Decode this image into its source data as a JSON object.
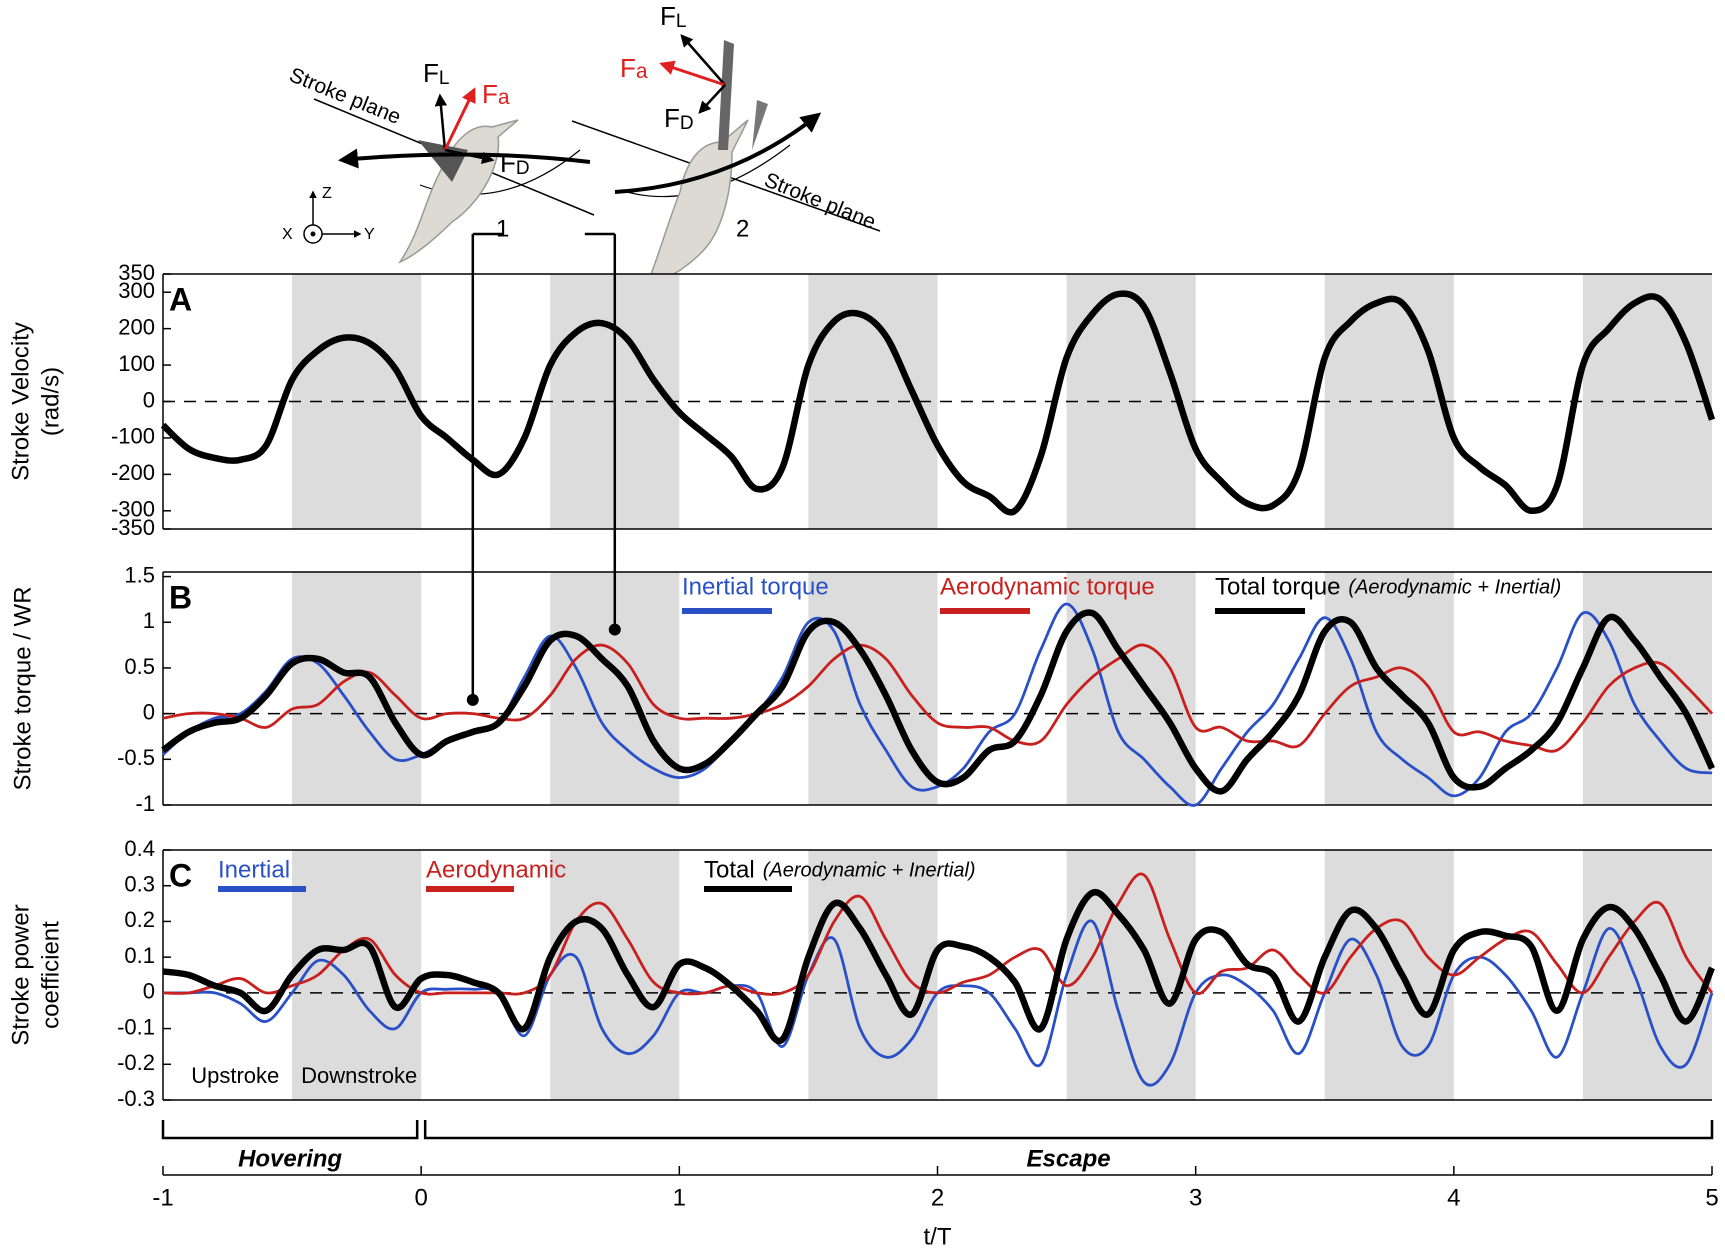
{
  "diagram": {
    "stroke_plane": [
      "Stroke plane",
      "Stroke plane"
    ],
    "bird_1": {
      "label": "1",
      "forces": [
        {
          "symbol": "F",
          "sub": "L"
        },
        {
          "symbol": "F",
          "sub": "a"
        },
        {
          "symbol": "F",
          "sub": "D"
        }
      ]
    },
    "bird_2": {
      "label": "2",
      "forces": [
        {
          "symbol": "F",
          "sub": "L"
        },
        {
          "symbol": "F",
          "sub": "a"
        },
        {
          "symbol": "F",
          "sub": "D"
        }
      ]
    },
    "axes": [
      "Z",
      "Y",
      "X"
    ]
  },
  "downstroke_spans": [
    [
      -0.5,
      0
    ],
    [
      0.5,
      1
    ],
    [
      1.5,
      2
    ],
    [
      2.5,
      3
    ],
    [
      3.5,
      4
    ],
    [
      4.5,
      5
    ]
  ],
  "chart_data": [
    {
      "type": "line",
      "label": "A",
      "ylabel": [
        "Stroke Velocity",
        "(rad/s)"
      ],
      "xlim": [
        -1,
        5
      ],
      "ylim": [
        -350,
        350
      ],
      "yticks": [
        -350,
        -300,
        -200,
        -100,
        0,
        100,
        200,
        300,
        350
      ],
      "x": [
        -1,
        -0.9,
        -0.8,
        -0.7,
        -0.6,
        -0.5,
        -0.4,
        -0.3,
        -0.2,
        -0.1,
        0,
        0.1,
        0.2,
        0.3,
        0.4,
        0.5,
        0.6,
        0.7,
        0.8,
        0.9,
        1,
        1.1,
        1.2,
        1.3,
        1.4,
        1.5,
        1.6,
        1.7,
        1.8,
        1.9,
        2,
        2.1,
        2.2,
        2.3,
        2.4,
        2.5,
        2.6,
        2.7,
        2.8,
        2.9,
        3,
        3.1,
        3.2,
        3.3,
        3.4,
        3.5,
        3.6,
        3.7,
        3.8,
        3.9,
        4,
        4.1,
        4.2,
        4.3,
        4.4,
        4.5,
        4.6,
        4.7,
        4.8,
        4.9,
        5
      ],
      "series": [
        {
          "color": "#000000",
          "values": [
            -65,
            -130,
            -155,
            -160,
            -120,
            60,
            140,
            175,
            160,
            90,
            -40,
            -100,
            -160,
            -200,
            -100,
            100,
            190,
            215,
            170,
            60,
            -30,
            -90,
            -150,
            -240,
            -180,
            100,
            220,
            240,
            180,
            30,
            -120,
            -220,
            -260,
            -300,
            -150,
            120,
            240,
            295,
            260,
            80,
            -130,
            -220,
            -280,
            -285,
            -190,
            120,
            220,
            270,
            270,
            140,
            -100,
            -180,
            -230,
            -300,
            -230,
            100,
            200,
            270,
            280,
            160,
            -50
          ]
        }
      ]
    },
    {
      "type": "line",
      "label": "B",
      "ylabel": [
        "Stroke torque / WR"
      ],
      "xlim": [
        -1,
        5
      ],
      "ylim": [
        -1,
        1.55
      ],
      "yticks": [
        -1,
        -0.5,
        0,
        0.5,
        1,
        1.5
      ],
      "x": [
        -1,
        -0.9,
        -0.8,
        -0.7,
        -0.6,
        -0.5,
        -0.4,
        -0.3,
        -0.2,
        -0.1,
        0,
        0.1,
        0.2,
        0.3,
        0.4,
        0.5,
        0.6,
        0.7,
        0.8,
        0.9,
        1,
        1.1,
        1.2,
        1.3,
        1.4,
        1.5,
        1.6,
        1.7,
        1.8,
        1.9,
        2,
        2.1,
        2.2,
        2.3,
        2.4,
        2.5,
        2.6,
        2.7,
        2.8,
        2.9,
        3,
        3.1,
        3.2,
        3.3,
        3.4,
        3.5,
        3.6,
        3.7,
        3.8,
        3.9,
        4,
        4.1,
        4.2,
        4.3,
        4.4,
        4.5,
        4.6,
        4.7,
        4.8,
        4.9,
        5
      ],
      "series": [
        {
          "name": "Inertial torque",
          "color": "#2a50c8",
          "values": [
            -0.45,
            -0.2,
            -0.05,
            0,
            0.25,
            0.6,
            0.55,
            0.2,
            -0.2,
            -0.5,
            -0.45,
            -0.3,
            -0.2,
            -0.1,
            0.4,
            0.85,
            0.5,
            -0.1,
            -0.4,
            -0.6,
            -0.7,
            -0.6,
            -0.3,
            0,
            0.4,
            1,
            0.9,
            0.1,
            -0.4,
            -0.8,
            -0.8,
            -0.6,
            -0.2,
            0,
            0.7,
            1.2,
            0.7,
            -0.2,
            -0.5,
            -0.8,
            -1,
            -0.6,
            -0.2,
            0.1,
            0.6,
            1.05,
            0.6,
            -0.2,
            -0.5,
            -0.7,
            -0.9,
            -0.7,
            -0.2,
            0,
            0.5,
            1.1,
            0.8,
            0.1,
            -0.3,
            -0.6,
            -0.65
          ]
        },
        {
          "name": "Aerodynamic torque",
          "color": "#c8201e",
          "values": [
            -0.05,
            0,
            0,
            -0.05,
            -0.15,
            0.05,
            0.1,
            0.35,
            0.45,
            0.2,
            -0.05,
            0,
            0,
            -0.05,
            -0.05,
            0.2,
            0.6,
            0.75,
            0.55,
            0.1,
            -0.05,
            -0.05,
            -0.05,
            0,
            0.1,
            0.3,
            0.6,
            0.75,
            0.6,
            0.2,
            -0.1,
            -0.15,
            -0.15,
            -0.3,
            -0.3,
            0.1,
            0.4,
            0.6,
            0.75,
            0.5,
            -0.15,
            -0.15,
            -0.3,
            -0.3,
            -0.35,
            0,
            0.3,
            0.4,
            0.5,
            0.3,
            -0.2,
            -0.2,
            -0.3,
            -0.35,
            -0.4,
            -0.1,
            0.3,
            0.5,
            0.55,
            0.3,
            0
          ]
        },
        {
          "name": "Total torque",
          "note": "(Aerodynamic + Inertial)",
          "color": "#000000",
          "values": [
            -0.4,
            -0.2,
            -0.1,
            -0.05,
            0.2,
            0.55,
            0.6,
            0.45,
            0.4,
            -0.1,
            -0.45,
            -0.3,
            -0.2,
            -0.1,
            0.3,
            0.8,
            0.85,
            0.6,
            0.3,
            -0.3,
            -0.6,
            -0.55,
            -0.3,
            0,
            0.3,
            0.9,
            1,
            0.7,
            0.2,
            -0.4,
            -0.75,
            -0.7,
            -0.4,
            -0.3,
            0.2,
            0.9,
            1.1,
            0.7,
            0.3,
            -0.1,
            -0.6,
            -0.85,
            -0.5,
            -0.2,
            0.2,
            0.9,
            1,
            0.5,
            0.2,
            -0.1,
            -0.7,
            -0.8,
            -0.6,
            -0.4,
            -0.1,
            0.5,
            1.05,
            0.8,
            0.4,
            0,
            -0.6
          ]
        }
      ],
      "markers": [
        {
          "x": 0.2,
          "y": 0.15
        },
        {
          "x": 0.75,
          "y": 0.92
        }
      ]
    },
    {
      "type": "line",
      "label": "C",
      "ylabel": [
        "Stroke power",
        "coefficient"
      ],
      "xlabel": "t/T",
      "xlim": [
        -1,
        5
      ],
      "xticks": [
        -1,
        0,
        1,
        2,
        3,
        4,
        5
      ],
      "ylim": [
        -0.3,
        0.4
      ],
      "yticks": [
        -0.3,
        -0.2,
        -0.1,
        0,
        0.1,
        0.2,
        0.3,
        0.4
      ],
      "x": [
        -1,
        -0.9,
        -0.8,
        -0.7,
        -0.6,
        -0.5,
        -0.4,
        -0.3,
        -0.2,
        -0.1,
        0,
        0.1,
        0.2,
        0.3,
        0.4,
        0.5,
        0.6,
        0.7,
        0.8,
        0.9,
        1,
        1.1,
        1.2,
        1.3,
        1.4,
        1.5,
        1.6,
        1.7,
        1.8,
        1.9,
        2,
        2.1,
        2.2,
        2.3,
        2.4,
        2.5,
        2.6,
        2.7,
        2.8,
        2.9,
        3,
        3.1,
        3.2,
        3.3,
        3.4,
        3.5,
        3.6,
        3.7,
        3.8,
        3.9,
        4,
        4.1,
        4.2,
        4.3,
        4.4,
        4.5,
        4.6,
        4.7,
        4.8,
        4.9,
        5
      ],
      "series": [
        {
          "name": "Inertial",
          "color": "#2a50c8",
          "values": [
            0,
            0,
            0,
            -0.03,
            -0.08,
            0,
            0.09,
            0.05,
            -0.05,
            -0.1,
            0,
            0.01,
            0.01,
            0,
            -0.12,
            0.05,
            0.1,
            -0.1,
            -0.17,
            -0.12,
            0,
            0,
            0.02,
            0,
            -0.15,
            0.05,
            0.15,
            -0.1,
            -0.18,
            -0.13,
            0,
            0.02,
            0,
            -0.1,
            -0.2,
            0.05,
            0.2,
            -0.05,
            -0.25,
            -0.2,
            0,
            0.05,
            0.02,
            -0.05,
            -0.17,
            0,
            0.15,
            0.05,
            -0.15,
            -0.15,
            0.05,
            0.1,
            0.05,
            -0.05,
            -0.18,
            0,
            0.18,
            0.05,
            -0.15,
            -0.2,
            0
          ]
        },
        {
          "name": "Aerodynamic",
          "color": "#c8201e",
          "values": [
            0,
            0,
            0.02,
            0.04,
            0,
            0.02,
            0.05,
            0.12,
            0.15,
            0.05,
            0,
            0,
            0,
            0,
            0,
            0.05,
            0.2,
            0.25,
            0.15,
            0.03,
            0,
            0,
            0.02,
            0,
            0,
            0.05,
            0.2,
            0.27,
            0.15,
            0.03,
            0,
            0.03,
            0.05,
            0.1,
            0.12,
            0.02,
            0.1,
            0.25,
            0.33,
            0.15,
            0,
            0.06,
            0.07,
            0.12,
            0.05,
            0,
            0.1,
            0.18,
            0.2,
            0.1,
            0.05,
            0.1,
            0.15,
            0.17,
            0.08,
            0,
            0.1,
            0.2,
            0.25,
            0.1,
            0
          ]
        },
        {
          "name": "Total",
          "note": "(Aerodynamic + Inertial)",
          "color": "#000000",
          "values": [
            0.06,
            0.05,
            0.02,
            0,
            -0.05,
            0.05,
            0.12,
            0.12,
            0.13,
            -0.04,
            0.04,
            0.05,
            0.03,
            0,
            -0.1,
            0.1,
            0.2,
            0.18,
            0.05,
            -0.04,
            0.08,
            0.07,
            0.02,
            -0.05,
            -0.13,
            0.1,
            0.25,
            0.18,
            0.05,
            -0.06,
            0.12,
            0.13,
            0.1,
            0.03,
            -0.1,
            0.15,
            0.28,
            0.22,
            0.12,
            -0.03,
            0.15,
            0.17,
            0.08,
            0.05,
            -0.08,
            0.1,
            0.23,
            0.18,
            0.05,
            -0.06,
            0.12,
            0.17,
            0.16,
            0.13,
            -0.05,
            0.15,
            0.24,
            0.18,
            0.05,
            -0.08,
            0.07
          ]
        }
      ],
      "annotations": [
        "Upstroke",
        "Downstroke"
      ],
      "phases": [
        {
          "label": "Hovering",
          "range": [
            -1,
            0
          ]
        },
        {
          "label": "Escape",
          "range": [
            0,
            5
          ]
        }
      ]
    }
  ]
}
